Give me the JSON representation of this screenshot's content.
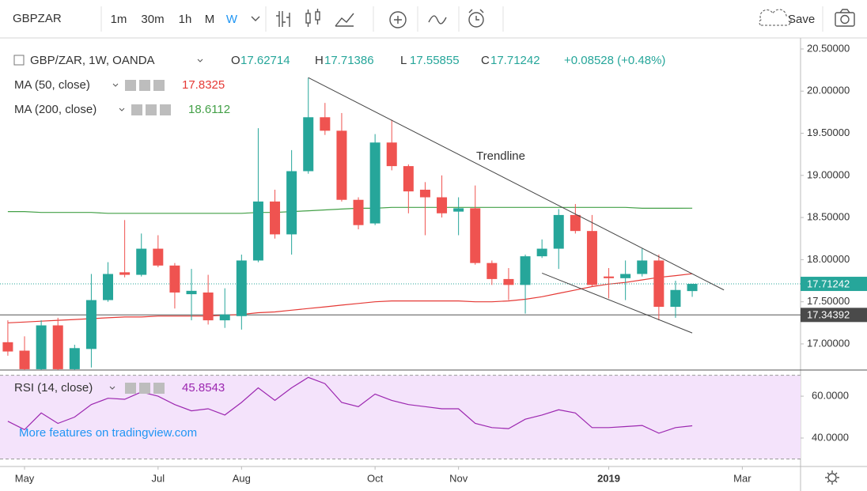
{
  "toolbar": {
    "symbol": "GBPZAR",
    "intervals": [
      "1m",
      "30m",
      "1h",
      "M",
      "W"
    ],
    "active_interval": 4,
    "save": "Save"
  },
  "watermark": "More features on tradingview.com",
  "chart_data": [
    {
      "type": "candlestick",
      "title": "GBP/ZAR, 1W, OANDA",
      "ohlc_labels": [
        "O",
        "H",
        "L",
        "C"
      ],
      "change": "+0.08528 (+0.48%)",
      "up_color": "#26a69a",
      "down_color": "#ef5350",
      "open": [
        17.02,
        16.92,
        16.7,
        17.22,
        16.7,
        16.94,
        17.52,
        17.85,
        17.82,
        18.13,
        17.93,
        17.59,
        17.61,
        17.28,
        17.33,
        17.99,
        18.69,
        18.3,
        19.05,
        19.69,
        19.53,
        18.71,
        18.43,
        19.39,
        19.11,
        18.83,
        18.74,
        18.57,
        18.61,
        17.96,
        17.77,
        17.7,
        18.04,
        18.13,
        18.53,
        18.34,
        17.8,
        17.78,
        17.83,
        17.99,
        17.44,
        17.62714
      ],
      "high": [
        17.28,
        17.09,
        17.28,
        17.31,
        16.99,
        17.83,
        17.97,
        18.47,
        18.31,
        18.29,
        17.96,
        17.89,
        17.82,
        17.66,
        18.06,
        19.56,
        18.83,
        19.3,
        20.16,
        19.86,
        19.74,
        18.74,
        19.49,
        19.66,
        19.13,
        18.92,
        19.0,
        18.74,
        18.88,
        17.99,
        17.9,
        18.06,
        18.24,
        18.6,
        18.66,
        18.53,
        17.9,
        17.99,
        18.13,
        18.06,
        17.75,
        17.71386
      ],
      "low": [
        16.86,
        16.65,
        16.65,
        16.65,
        16.65,
        16.72,
        17.5,
        17.79,
        17.8,
        17.91,
        17.42,
        17.28,
        17.23,
        17.19,
        17.17,
        17.97,
        18.25,
        18.06,
        19.02,
        19.48,
        18.69,
        18.36,
        18.41,
        19.06,
        18.55,
        18.29,
        18.5,
        18.29,
        17.94,
        17.7,
        17.52,
        17.36,
        18.02,
        17.89,
        18.31,
        17.68,
        17.54,
        17.52,
        17.8,
        17.28,
        17.31,
        17.55855
      ],
      "close": [
        16.91,
        16.7,
        17.22,
        16.7,
        16.95,
        17.52,
        17.83,
        17.82,
        18.13,
        17.93,
        17.61,
        17.63,
        17.28,
        17.35,
        17.99,
        18.69,
        18.3,
        19.05,
        19.69,
        19.53,
        18.71,
        18.41,
        19.39,
        19.11,
        18.81,
        18.74,
        18.55,
        18.61,
        17.96,
        17.77,
        17.7,
        18.04,
        18.13,
        18.53,
        18.34,
        17.7,
        17.78,
        17.83,
        17.99,
        17.44,
        17.64,
        17.71242
      ],
      "series": [
        {
          "name": "MA (50, close)",
          "color": "#e53935",
          "values": [
            17.25,
            17.26,
            17.27,
            17.28,
            17.29,
            17.3,
            17.31,
            17.32,
            17.32,
            17.33,
            17.33,
            17.33,
            17.33,
            17.34,
            17.35,
            17.37,
            17.38,
            17.4,
            17.42,
            17.44,
            17.46,
            17.48,
            17.5,
            17.51,
            17.51,
            17.51,
            17.51,
            17.51,
            17.5,
            17.5,
            17.51,
            17.53,
            17.56,
            17.6,
            17.64,
            17.68,
            17.71,
            17.73,
            17.76,
            17.79,
            17.81,
            17.8325
          ]
        },
        {
          "name": "MA (200, close)",
          "color": "#43a047",
          "values": [
            18.57,
            18.57,
            18.56,
            18.56,
            18.56,
            18.56,
            18.55,
            18.55,
            18.55,
            18.55,
            18.55,
            18.55,
            18.55,
            18.55,
            18.55,
            18.56,
            18.56,
            18.57,
            18.58,
            18.59,
            18.6,
            18.61,
            18.61,
            18.62,
            18.62,
            18.62,
            18.62,
            18.62,
            18.62,
            18.62,
            18.62,
            18.62,
            18.62,
            18.62,
            18.62,
            18.62,
            18.62,
            18.62,
            18.61,
            18.61,
            18.61,
            18.6112
          ]
        }
      ],
      "hline": 17.34392,
      "trendlines": [
        {
          "points": [
            [
              18.0,
              20.16
            ],
            [
              42.9,
              17.64
            ]
          ]
        },
        {
          "points": [
            [
              32.0,
              17.84
            ],
            [
              41.0,
              17.13
            ]
          ]
        }
      ],
      "annotations": [
        {
          "text": "Trendline"
        }
      ],
      "xlim": [
        -0.47,
        47.49
      ],
      "ylim": [
        16.69,
        20.631
      ],
      "yticks": [
        {
          "value": 17,
          "label": "17.00000"
        },
        {
          "value": 17.5,
          "label": "17.50000"
        },
        {
          "value": 18,
          "label": "18.00000"
        },
        {
          "value": 18.5,
          "label": "18.50000"
        },
        {
          "value": 19,
          "label": "19.00000"
        },
        {
          "value": 19.5,
          "label": "19.50000"
        },
        {
          "value": 20,
          "label": "20.00000"
        },
        {
          "value": 20.5,
          "label": "20.50000"
        }
      ]
    },
    {
      "type": "line",
      "series": [
        {
          "name": "RSI (14, close)",
          "color": "#9c27b0",
          "values": [
            48,
            44,
            52,
            47,
            50,
            56,
            59,
            58.5,
            62,
            60,
            56,
            53,
            54,
            51,
            57,
            64,
            58,
            64,
            69,
            66,
            57,
            55,
            61,
            58,
            56,
            55,
            54,
            54,
            47,
            45,
            44.5,
            49,
            51,
            53.5,
            52,
            45,
            45,
            45.5,
            46,
            42.3,
            45,
            45.8543
          ]
        }
      ],
      "band": [
        30,
        70
      ],
      "xlim": [
        -0.47,
        47.49
      ],
      "ylim": [
        26.4,
        72.5
      ],
      "yticks": [
        {
          "value": 40,
          "label": "40.0000"
        },
        {
          "value": 60,
          "label": "60.0000"
        }
      ],
      "xticks": [
        {
          "value": 1,
          "label": "May"
        },
        {
          "value": 9,
          "label": "Jul"
        },
        {
          "value": 14,
          "label": "Aug"
        },
        {
          "value": 22,
          "label": "Oct"
        },
        {
          "value": 27,
          "label": "Nov"
        },
        {
          "value": 36,
          "label": "2019"
        },
        {
          "value": 44,
          "label": "Mar"
        }
      ]
    }
  ]
}
